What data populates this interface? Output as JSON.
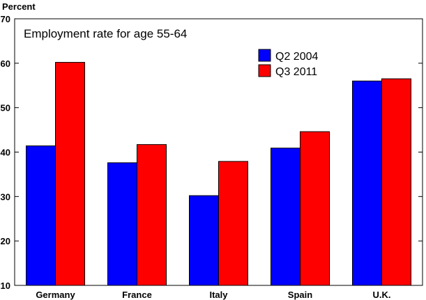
{
  "chart_data": {
    "type": "bar",
    "title": "Employment rate for age 55-64",
    "ylabel": "Percent",
    "xlabel": "",
    "categories": [
      "Germany",
      "France",
      "Italy",
      "Spain",
      "U.K."
    ],
    "series": [
      {
        "name": "Q2 2004",
        "color": "#0000ff",
        "values": [
          41.4,
          37.6,
          30.2,
          40.9,
          56.0
        ]
      },
      {
        "name": "Q3 2011",
        "color": "#ff0000",
        "values": [
          60.2,
          41.7,
          37.9,
          44.6,
          56.5
        ]
      }
    ],
    "ylim": [
      10,
      70
    ],
    "yticks": [
      10,
      20,
      30,
      40,
      50,
      60,
      70
    ],
    "grid": false,
    "legend_position": "top-right"
  }
}
